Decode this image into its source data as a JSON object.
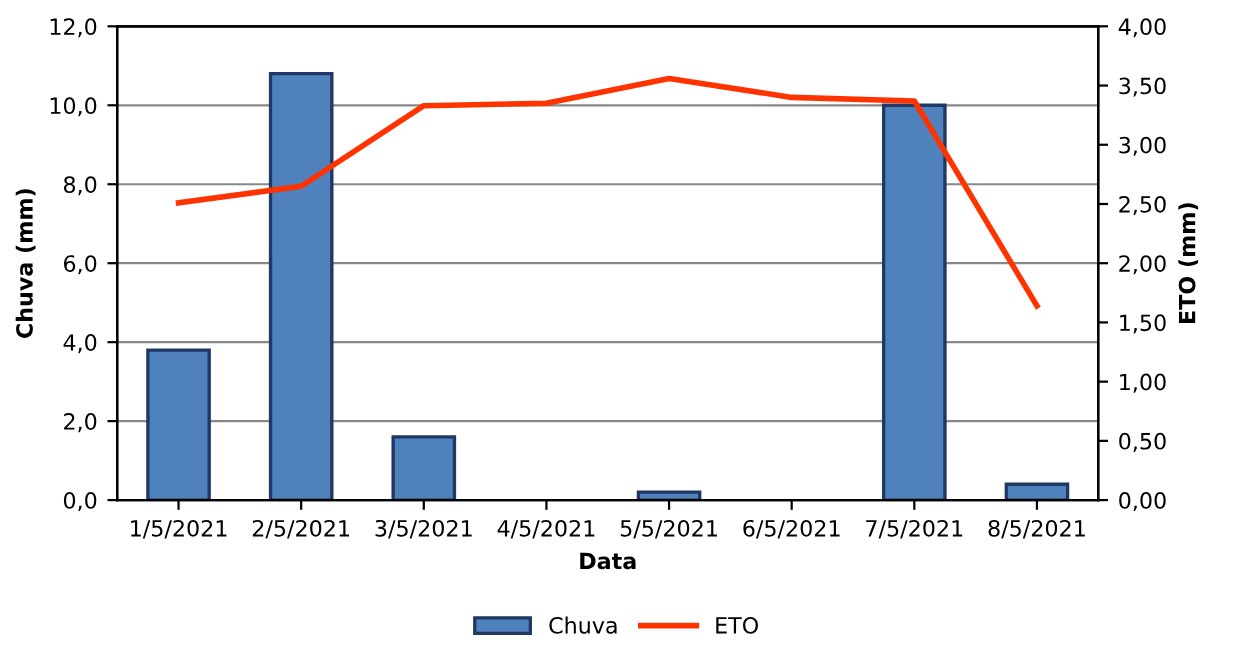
{
  "chart_data": {
    "type": "bar",
    "xlabel": "Data",
    "ylabel": "Chuva (mm)",
    "y2label": "ETO (mm)",
    "categories": [
      "1/5/2021",
      "2/5/2021",
      "3/5/2021",
      "4/5/2021",
      "5/5/2021",
      "6/5/2021",
      "7/5/2021",
      "8/5/2021"
    ],
    "series": [
      {
        "name": "Chuva",
        "color": "#4f81bd",
        "values": [
          3.8,
          10.8,
          1.6,
          0,
          0.2,
          0,
          10.0,
          0.4
        ]
      },
      {
        "name": "ETO",
        "type": "line",
        "axis": "y2",
        "color": "#ff3300",
        "values": [
          2.51,
          2.65,
          3.33,
          3.35,
          3.56,
          3.4,
          3.37,
          1.64
        ]
      }
    ],
    "ylim": [
      0,
      12
    ],
    "yticks": [
      {
        "value": 0,
        "label": "0,0"
      },
      {
        "value": 2,
        "label": "2,0"
      },
      {
        "value": 4,
        "label": "4,0"
      },
      {
        "value": 6,
        "label": "6,0"
      },
      {
        "value": 8,
        "label": "8,0"
      },
      {
        "value": 10,
        "label": "10,0"
      },
      {
        "value": 12,
        "label": "12,0"
      }
    ],
    "y2lim": [
      0,
      4
    ],
    "y2ticks": [
      {
        "value": 0,
        "label": "0,00"
      },
      {
        "value": 0.5,
        "label": "0,50"
      },
      {
        "value": 1,
        "label": "1,00"
      },
      {
        "value": 1.5,
        "label": "1,50"
      },
      {
        "value": 2,
        "label": "2,00"
      },
      {
        "value": 2.5,
        "label": "2,50"
      },
      {
        "value": 3,
        "label": "3,00"
      },
      {
        "value": 3.5,
        "label": "3,50"
      },
      {
        "value": 4,
        "label": "4,00"
      }
    ],
    "grid": "y",
    "legend": "bottom"
  }
}
